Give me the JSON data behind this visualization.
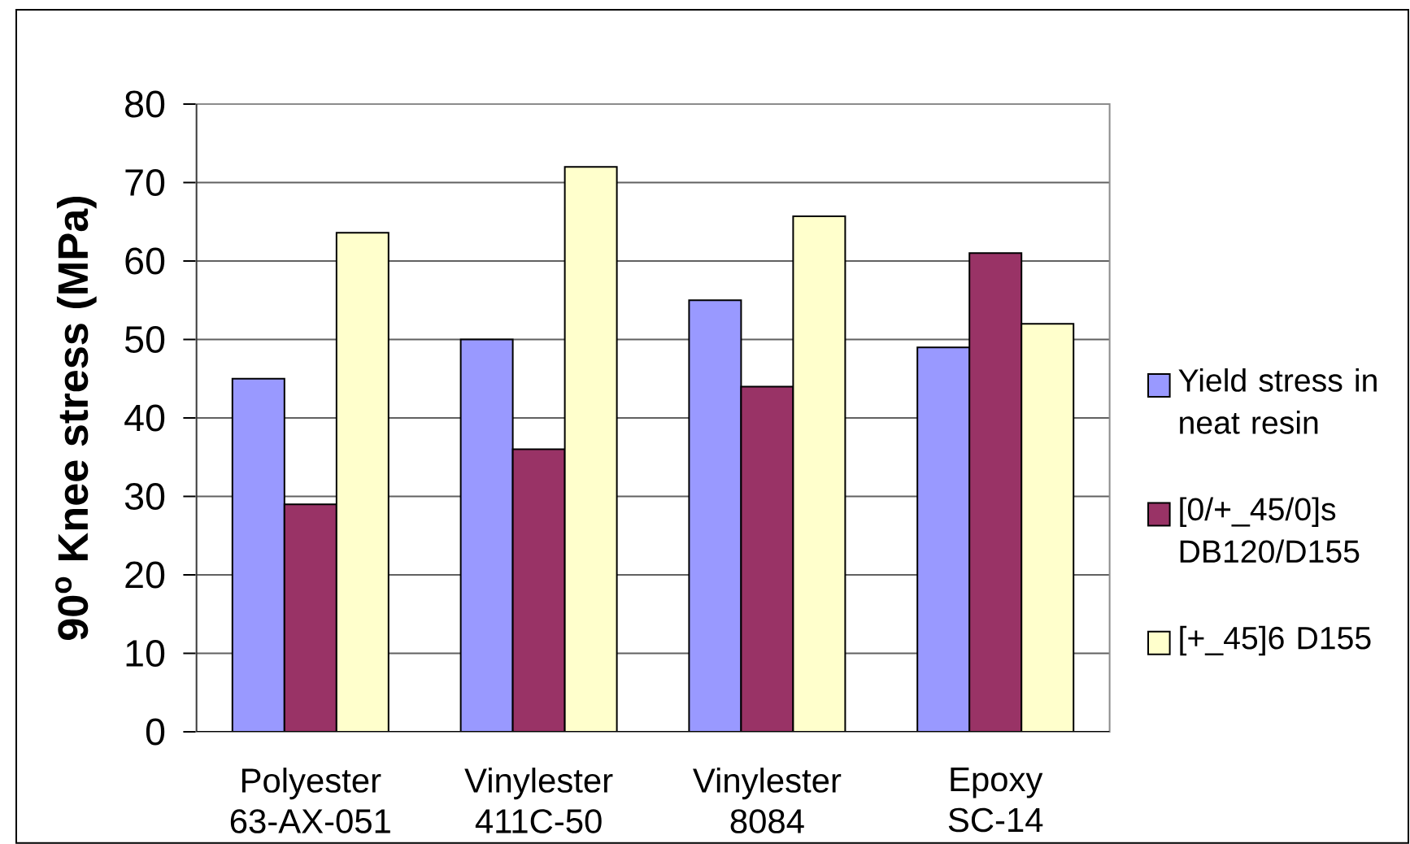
{
  "chart_data": {
    "type": "bar",
    "ylabel": "90$^{o}$ Knee stress (MPa)",
    "categories": [
      "Polyester 63-AX-051",
      "Vinylester 411C-50",
      "Vinylester 8084",
      "Epoxy SC-14"
    ],
    "series": [
      {
        "name": "Yield stress in neat resin",
        "color": "#9999ff",
        "values": [
          45,
          50,
          55,
          49
        ]
      },
      {
        "name": "[0/+_45/0]s DB120/D155",
        "color": "#993366",
        "values": [
          29,
          36,
          44,
          61
        ]
      },
      {
        "name": "[+_45]6 D155",
        "color": "#ffffcc",
        "values": [
          63.6,
          72,
          65.7,
          52
        ]
      }
    ],
    "ylim": [
      0,
      80
    ],
    "yticks": [
      0,
      10,
      20,
      30,
      40,
      50,
      60,
      70,
      80
    ],
    "grid": "y",
    "legend": "right"
  }
}
